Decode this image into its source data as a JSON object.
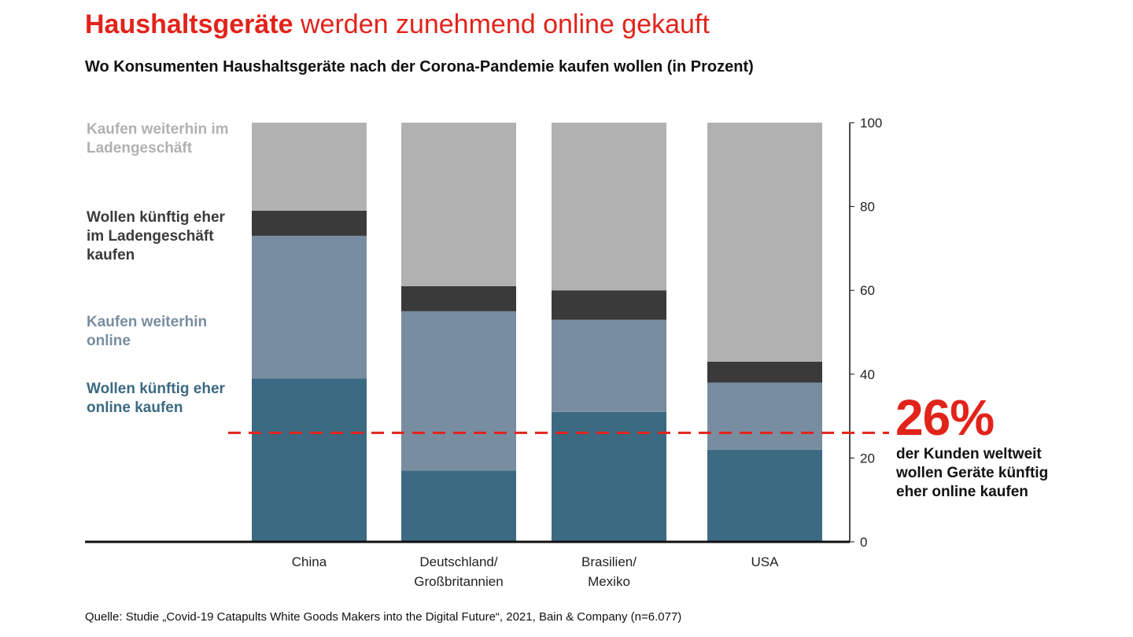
{
  "header": {
    "title_bold": "Haushaltsgeräte",
    "title_rest": " werden zunehmend online gekauft",
    "subtitle": "Wo Konsumenten Haushaltsgeräte nach der Corona-Pandemie kaufen wollen (in Prozent)"
  },
  "colors": {
    "accent": "#e2231a",
    "store_continue": "#b1b1b1",
    "store_shift": "#3a3a3a",
    "online_continue": "#798da1",
    "online_shift": "#3c6a82"
  },
  "chart_data": {
    "type": "bar",
    "stacked": true,
    "categories": [
      [
        "China"
      ],
      [
        "Deutschland/",
        "Großbritannien"
      ],
      [
        "Brasilien/",
        "Mexiko"
      ],
      [
        "USA"
      ]
    ],
    "series": [
      {
        "name": "Wollen künftig eher online kaufen",
        "values": [
          39,
          17,
          31,
          22
        ]
      },
      {
        "name": "Kaufen weiterhin online",
        "values": [
          34,
          38,
          22,
          16
        ]
      },
      {
        "name": "Wollen künftig eher im Ladengeschäft kaufen",
        "values": [
          6,
          6,
          7,
          5
        ]
      },
      {
        "name": "Kaufen weiterhin im Ladengeschäft",
        "values": [
          21,
          39,
          40,
          57
        ]
      }
    ],
    "ylim": [
      0,
      100
    ],
    "yticks": [
      "0",
      "20",
      "40",
      "60",
      "80",
      "100"
    ],
    "reference_line": {
      "value": 26,
      "style": "dashed"
    }
  },
  "legend": [
    {
      "text": "Kaufen weiterhin im Ladengeschäft"
    },
    {
      "text": "Wollen künftig eher im Ladengeschäft kaufen"
    },
    {
      "text": "Kaufen weiterhin online"
    },
    {
      "text": "Wollen künftig eher online kaufen"
    }
  ],
  "callout": {
    "value": "26%",
    "text": "der Kunden weltweit wollen Geräte künftig eher online kaufen"
  },
  "footnote": "Quelle: Studie „Covid-19 Catapults White Goods Makers into the Digital Future“, 2021, Bain & Company (n=6.077)"
}
